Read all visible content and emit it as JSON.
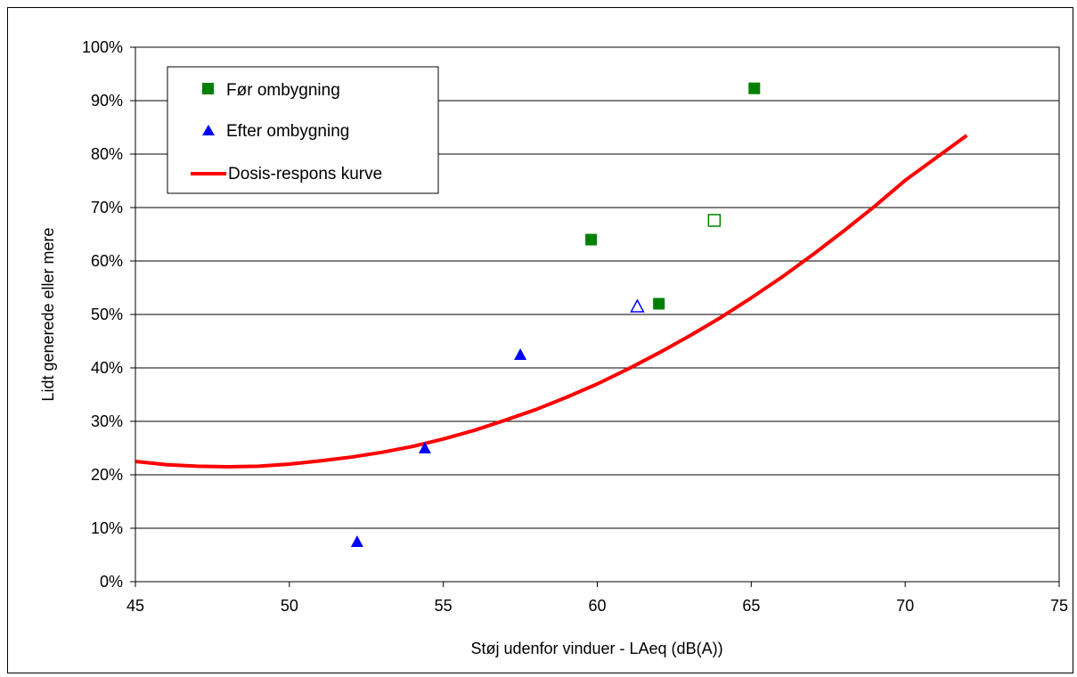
{
  "chart_data": {
    "type": "scatter",
    "xlabel": "Støj udenfor vinduer - LAeq (dB(A))",
    "ylabel": "Lidt generede eller mere",
    "xlim": [
      45,
      75
    ],
    "ylim": [
      0,
      100
    ],
    "x_ticks": [
      "45",
      "50",
      "55",
      "60",
      "65",
      "70",
      "75"
    ],
    "y_ticks": [
      "0%",
      "10%",
      "20%",
      "30%",
      "40%",
      "50%",
      "60%",
      "70%",
      "80%",
      "90%",
      "100%"
    ],
    "grid": "horizontal",
    "legend_position": "top-left",
    "series": [
      {
        "name": "Før ombygning",
        "marker": "square",
        "color": "#008000",
        "points": [
          {
            "x": 59.8,
            "y": 64.0,
            "filled": true
          },
          {
            "x": 62.0,
            "y": 52.0,
            "filled": true
          },
          {
            "x": 65.1,
            "y": 92.3,
            "filled": true
          },
          {
            "x": 63.8,
            "y": 67.6,
            "filled": false
          }
        ]
      },
      {
        "name": "Efter ombygning",
        "marker": "triangle",
        "color": "#0000ff",
        "points": [
          {
            "x": 52.2,
            "y": 7.5,
            "filled": true
          },
          {
            "x": 54.4,
            "y": 25.0,
            "filled": true
          },
          {
            "x": 57.5,
            "y": 42.5,
            "filled": true
          },
          {
            "x": 61.3,
            "y": 51.5,
            "filled": false
          }
        ]
      },
      {
        "name": "Dosis-respons kurve",
        "type": "line",
        "color": "#ff0000",
        "x": [
          45,
          46,
          47,
          48,
          49,
          50,
          51,
          52,
          53,
          54,
          55,
          56,
          57,
          58,
          59,
          60,
          61,
          62,
          63,
          64,
          65,
          66,
          67,
          68,
          69,
          70,
          71,
          72
        ],
        "y": [
          22.5,
          21.9,
          21.6,
          21.5,
          21.6,
          22.0,
          22.6,
          23.3,
          24.2,
          25.3,
          26.7,
          28.3,
          30.2,
          32.2,
          34.5,
          37.0,
          39.8,
          42.8,
          46.0,
          49.4,
          53.1,
          57.0,
          61.2,
          65.6,
          70.2,
          75.1,
          79.3,
          83.5
        ]
      }
    ]
  }
}
